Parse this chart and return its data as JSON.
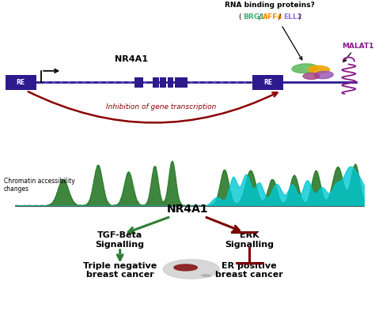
{
  "background_color": "#ffffff",
  "title_top": "RNA binding proteins?",
  "proteins": [
    "BRG1",
    "AFF4",
    "ELL2"
  ],
  "protein_colors": [
    "#3cb371",
    "#ff8c00",
    "#9370db"
  ],
  "malat1_color": "#8b1a8b",
  "malat1_label": "MALAT1",
  "re_color": "#2d1b8e",
  "gene_label": "NR4A1",
  "inhibition_label": "Inhibition of gene transcription",
  "inhibition_color": "#8b0000",
  "chromatin_label": "Chromatin accessibility\nchanges",
  "nr4a1_center": "NR4A1",
  "tgf_label": "TGF-Beta\nSignalling",
  "erk_label": "ERK\nSignalling",
  "triple_label": "Triple negative\nbreast cancer",
  "er_label": "ER positive\nbreast cancer",
  "arrow_green": "#2e7d32",
  "arrow_red": "#7b0000",
  "gene_line_color": "#2d1b8e",
  "tick_color": "#6666cc"
}
